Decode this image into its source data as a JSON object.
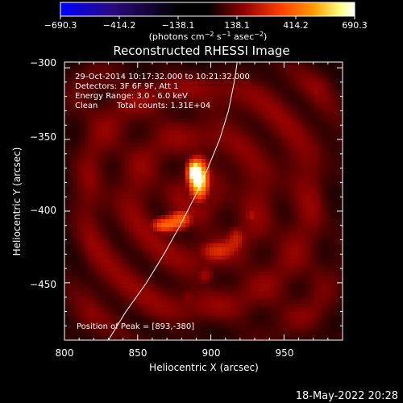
{
  "colorbar": {
    "tick_labels": [
      "−690.3",
      "−414.2",
      "−138.1",
      "138.1",
      "414.2",
      "690.3"
    ],
    "unit_prefix": "(photons cm",
    "unit_exp1": "−2",
    "unit_mid": " s",
    "unit_exp2": "−1",
    "unit_mid2": " asec",
    "unit_exp3": "−2",
    "unit_suffix": ")",
    "range": [
      -690.3,
      690.3
    ],
    "colors": [
      "#0000ff",
      "#2a0a7a",
      "#000000",
      "#8b0000",
      "#ff4000",
      "#ff9a00",
      "#ffff80",
      "#ffffff"
    ]
  },
  "info": {
    "time_range": "29-Oct-2014 10:17:32.000 to 10:21:32.000",
    "detectors": "Detectors: 3F 6F 9F, Att 1",
    "energy": "Energy Range: 3.0 - 6.0 keV",
    "algorithm": "Clean",
    "counts": "Total counts: 1.31E+04",
    "peak": "Position of Peak = [893,-380]"
  },
  "footer": {
    "date": "18-May-2022 20:28"
  },
  "chart_data": {
    "type": "heatmap",
    "title": "Reconstructed RHESSI Image",
    "xlabel": "Heliocentric X (arcsec)",
    "ylabel": "Heliocentric Y (arcsec)",
    "xlim": [
      800,
      990
    ],
    "ylim": [
      -490,
      -296
    ],
    "xticks": [
      800,
      850,
      900,
      950
    ],
    "xtick_labels": [
      "800",
      "850",
      "900",
      "950"
    ],
    "yticks": [
      -300,
      -350,
      -400,
      -450
    ],
    "ytick_labels": [
      "−300",
      "−350",
      "−400",
      "−450"
    ],
    "peak": [
      893,
      -380
    ],
    "sources": [
      {
        "x": 892,
        "y": -378,
        "amp": 1.0,
        "sx": 5,
        "sy": 10
      },
      {
        "x": 888,
        "y": -372,
        "amp": 0.55,
        "sx": 3,
        "sy": 5
      },
      {
        "x": 868,
        "y": -410,
        "amp": 0.55,
        "sx": 7,
        "sy": 4
      },
      {
        "x": 880,
        "y": -405,
        "amp": 0.5,
        "sx": 6,
        "sy": 5
      },
      {
        "x": 905,
        "y": -428,
        "amp": 0.42,
        "sx": 10,
        "sy": 6
      },
      {
        "x": 918,
        "y": -418,
        "amp": 0.3,
        "sx": 5,
        "sy": 6
      },
      {
        "x": 928,
        "y": -403,
        "amp": 0.3,
        "sx": 4,
        "sy": 4
      },
      {
        "x": 896,
        "y": -445,
        "amp": 0.25,
        "sx": 5,
        "sy": 5
      },
      {
        "x": 885,
        "y": -462,
        "amp": 0.2,
        "sx": 6,
        "sy": 8
      }
    ],
    "limb_curve": [
      [
        830,
        -490
      ],
      [
        842,
        -470
      ],
      [
        856,
        -450
      ],
      [
        868,
        -430
      ],
      [
        879,
        -410
      ],
      [
        889,
        -390
      ],
      [
        898,
        -370
      ],
      [
        906,
        -350
      ],
      [
        912,
        -330
      ],
      [
        916,
        -310
      ],
      [
        918,
        -296
      ]
    ]
  }
}
